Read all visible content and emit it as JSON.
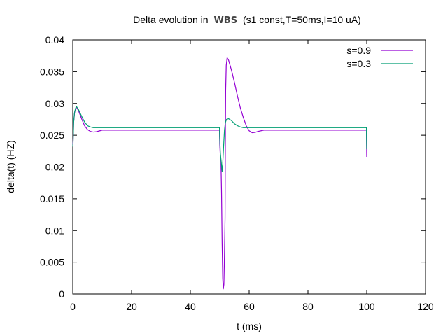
{
  "chart_data": {
    "type": "line",
    "title": {
      "prefix": "Delta evolution in",
      "abbr": "WBS",
      "suffix": "(s1 const,T=50ms,I=10 uA)"
    },
    "xlabel": "t (ms)",
    "ylabel": "delta(t) (HZ)",
    "xlim": [
      0,
      120
    ],
    "ylim": [
      0,
      0.04
    ],
    "x_ticks": [
      0,
      20,
      40,
      60,
      80,
      100,
      120
    ],
    "y_ticks": [
      0,
      0.005,
      0.01,
      0.015,
      0.02,
      0.025,
      0.03,
      0.035,
      0.04
    ],
    "x_tick_labels": [
      "0",
      "20",
      "40",
      "60",
      "80",
      "100",
      "120"
    ],
    "y_tick_labels": [
      "0",
      "0.005",
      "0.01",
      "0.015",
      "0.02",
      "0.025",
      "0.03",
      "0.035",
      "0.04"
    ],
    "grid": false,
    "legend_position": "top-right",
    "series": [
      {
        "name": "s=0.9",
        "color": "#9400d3",
        "points": [
          [
            0,
            0.0235
          ],
          [
            0.1,
            0.024
          ],
          [
            0.3,
            0.027
          ],
          [
            0.6,
            0.0285
          ],
          [
            1,
            0.0292
          ],
          [
            1.3,
            0.0294
          ],
          [
            2,
            0.0288
          ],
          [
            3,
            0.0276
          ],
          [
            4,
            0.0265
          ],
          [
            5,
            0.0259
          ],
          [
            6,
            0.0256
          ],
          [
            7,
            0.0255
          ],
          [
            8,
            0.02555
          ],
          [
            10,
            0.0258
          ],
          [
            20,
            0.0258
          ],
          [
            40,
            0.0258
          ],
          [
            49.9,
            0.0258
          ],
          [
            50,
            0.0235
          ],
          [
            50.2,
            0.0216
          ],
          [
            50.4,
            0.021
          ],
          [
            50.6,
            0.016
          ],
          [
            50.8,
            0.008
          ],
          [
            51.0,
            0.0025
          ],
          [
            51.2,
            0.0008
          ],
          [
            51.4,
            0.0015
          ],
          [
            51.6,
            0.006
          ],
          [
            51.8,
            0.012
          ],
          [
            51.9,
            0.024
          ],
          [
            52.0,
            0.032
          ],
          [
            52.2,
            0.036
          ],
          [
            52.5,
            0.0372
          ],
          [
            53,
            0.0368
          ],
          [
            54,
            0.0352
          ],
          [
            55,
            0.0333
          ],
          [
            56,
            0.0312
          ],
          [
            57,
            0.0293
          ],
          [
            58,
            0.0278
          ],
          [
            59,
            0.0265
          ],
          [
            60,
            0.0257
          ],
          [
            61,
            0.0254
          ],
          [
            62,
            0.02545
          ],
          [
            63,
            0.0256
          ],
          [
            65,
            0.0258
          ],
          [
            70,
            0.0258
          ],
          [
            99.9,
            0.0258
          ],
          [
            100,
            0.0216
          ]
        ]
      },
      {
        "name": "s=0.3",
        "color": "#009e73",
        "points": [
          [
            0,
            0.0232
          ],
          [
            0.1,
            0.0238
          ],
          [
            0.3,
            0.027
          ],
          [
            0.6,
            0.0286
          ],
          [
            1,
            0.0293
          ],
          [
            1.3,
            0.0295
          ],
          [
            2,
            0.029
          ],
          [
            3,
            0.028
          ],
          [
            4,
            0.0271
          ],
          [
            5,
            0.0265
          ],
          [
            6,
            0.0263
          ],
          [
            7,
            0.0262
          ],
          [
            9,
            0.0262
          ],
          [
            20,
            0.0262
          ],
          [
            49.9,
            0.0262
          ],
          [
            50,
            0.0245
          ],
          [
            50.2,
            0.0222
          ],
          [
            50.5,
            0.0208
          ],
          [
            50.8,
            0.0193
          ],
          [
            51.0,
            0.0205
          ],
          [
            51.3,
            0.0232
          ],
          [
            51.6,
            0.0258
          ],
          [
            51.9,
            0.027
          ],
          [
            52.3,
            0.0275
          ],
          [
            53,
            0.0276
          ],
          [
            54,
            0.0273
          ],
          [
            55,
            0.0268
          ],
          [
            56,
            0.0265
          ],
          [
            57,
            0.0263
          ],
          [
            58,
            0.0262
          ],
          [
            60,
            0.0262
          ],
          [
            99.9,
            0.0262
          ],
          [
            100,
            0.0228
          ]
        ]
      }
    ]
  }
}
